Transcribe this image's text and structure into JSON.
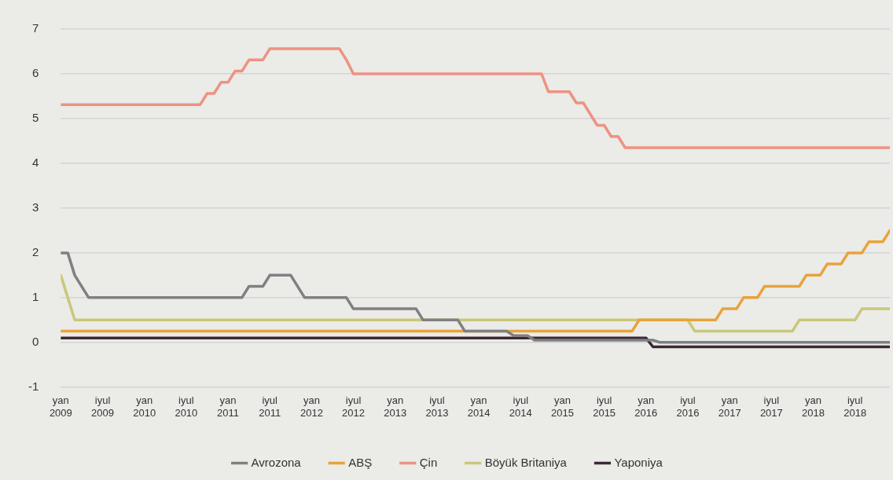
{
  "chart_data": {
    "type": "line",
    "xlim": [
      "2009-01",
      "2018-12"
    ],
    "xticks": [
      {
        "value": "2009-01",
        "label": "yan 2009"
      },
      {
        "value": "2009-07",
        "label": "iyul 2009"
      },
      {
        "value": "2010-01",
        "label": "yan 2010"
      },
      {
        "value": "2010-07",
        "label": "iyul 2010"
      },
      {
        "value": "2011-01",
        "label": "yan 2011"
      },
      {
        "value": "2011-07",
        "label": "iyul 2011"
      },
      {
        "value": "2012-01",
        "label": "yan 2012"
      },
      {
        "value": "2012-07",
        "label": "iyul 2012"
      },
      {
        "value": "2013-01",
        "label": "yan 2013"
      },
      {
        "value": "2013-07",
        "label": "iyul 2013"
      },
      {
        "value": "2014-01",
        "label": "yan 2014"
      },
      {
        "value": "2014-07",
        "label": "iyul 2014"
      },
      {
        "value": "2015-01",
        "label": "yan 2015"
      },
      {
        "value": "2015-07",
        "label": "iyul 2015"
      },
      {
        "value": "2016-01",
        "label": "yan 2016"
      },
      {
        "value": "2016-07",
        "label": "iyul 2016"
      },
      {
        "value": "2017-01",
        "label": "yan 2017"
      },
      {
        "value": "2017-07",
        "label": "iyul 2017"
      },
      {
        "value": "2018-01",
        "label": "yan 2018"
      },
      {
        "value": "2018-07",
        "label": "iyul 2018"
      }
    ],
    "ylim": [
      -1,
      7
    ],
    "yticks": [
      -1,
      0,
      1,
      2,
      3,
      4,
      5,
      6,
      7
    ],
    "grid": "y",
    "legend": "bottom",
    "marker": "none",
    "line_style": "solid",
    "series": [
      {
        "name": "Avrozona",
        "color": "#807f82",
        "x": [
          "2009-01",
          "2009-02",
          "2009-03",
          "2009-04",
          "2009-05",
          "2011-03",
          "2011-04",
          "2011-06",
          "2011-07",
          "2011-10",
          "2011-11",
          "2011-12",
          "2012-06",
          "2012-07",
          "2013-04",
          "2013-05",
          "2013-10",
          "2013-11",
          "2014-05",
          "2014-06",
          "2014-08",
          "2014-09",
          "2016-02",
          "2016-03",
          "2018-12"
        ],
        "values": [
          2.0,
          2.0,
          1.5,
          1.25,
          1.0,
          1.0,
          1.25,
          1.25,
          1.5,
          1.5,
          1.25,
          1.0,
          1.0,
          0.75,
          0.75,
          0.5,
          0.5,
          0.25,
          0.25,
          0.15,
          0.15,
          0.05,
          0.05,
          0.0,
          0.0
        ]
      },
      {
        "name": "ABŞ",
        "color": "#e9a23b",
        "x": [
          "2009-01",
          "2015-11",
          "2015-12",
          "2016-11",
          "2016-12",
          "2017-02",
          "2017-03",
          "2017-05",
          "2017-06",
          "2017-11",
          "2017-12",
          "2018-02",
          "2018-03",
          "2018-05",
          "2018-06",
          "2018-08",
          "2018-09",
          "2018-11",
          "2018-12"
        ],
        "values": [
          0.25,
          0.25,
          0.5,
          0.5,
          0.75,
          0.75,
          1.0,
          1.0,
          1.25,
          1.25,
          1.5,
          1.5,
          1.75,
          1.75,
          2.0,
          2.0,
          2.25,
          2.25,
          2.5
        ]
      },
      {
        "name": "Çin",
        "color": "#ee9282",
        "x": [
          "2009-01",
          "2010-09",
          "2010-10",
          "2010-11",
          "2010-12",
          "2011-01",
          "2011-02",
          "2011-03",
          "2011-04",
          "2011-06",
          "2011-07",
          "2012-05",
          "2012-06",
          "2012-07",
          "2014-10",
          "2014-11",
          "2015-02",
          "2015-03",
          "2015-04",
          "2015-05",
          "2015-06",
          "2015-07",
          "2015-08",
          "2015-09",
          "2015-10",
          "2018-12"
        ],
        "values": [
          5.31,
          5.31,
          5.56,
          5.56,
          5.81,
          5.81,
          6.06,
          6.06,
          6.31,
          6.31,
          6.56,
          6.56,
          6.31,
          6.0,
          6.0,
          5.6,
          5.6,
          5.35,
          5.35,
          5.1,
          4.85,
          4.85,
          4.6,
          4.6,
          4.35,
          4.35
        ]
      },
      {
        "name": "Böyük Britaniya",
        "color": "#c9c77a",
        "x": [
          "2009-01",
          "2009-02",
          "2009-03",
          "2016-07",
          "2016-08",
          "2017-10",
          "2017-11",
          "2018-07",
          "2018-08",
          "2018-12"
        ],
        "values": [
          1.5,
          1.0,
          0.5,
          0.5,
          0.25,
          0.25,
          0.5,
          0.5,
          0.75,
          0.75
        ]
      },
      {
        "name": "Yaponiya",
        "color": "#3b2836",
        "x": [
          "2009-01",
          "2016-01",
          "2016-02",
          "2018-12"
        ],
        "values": [
          0.1,
          0.1,
          -0.1,
          -0.1
        ]
      }
    ]
  }
}
